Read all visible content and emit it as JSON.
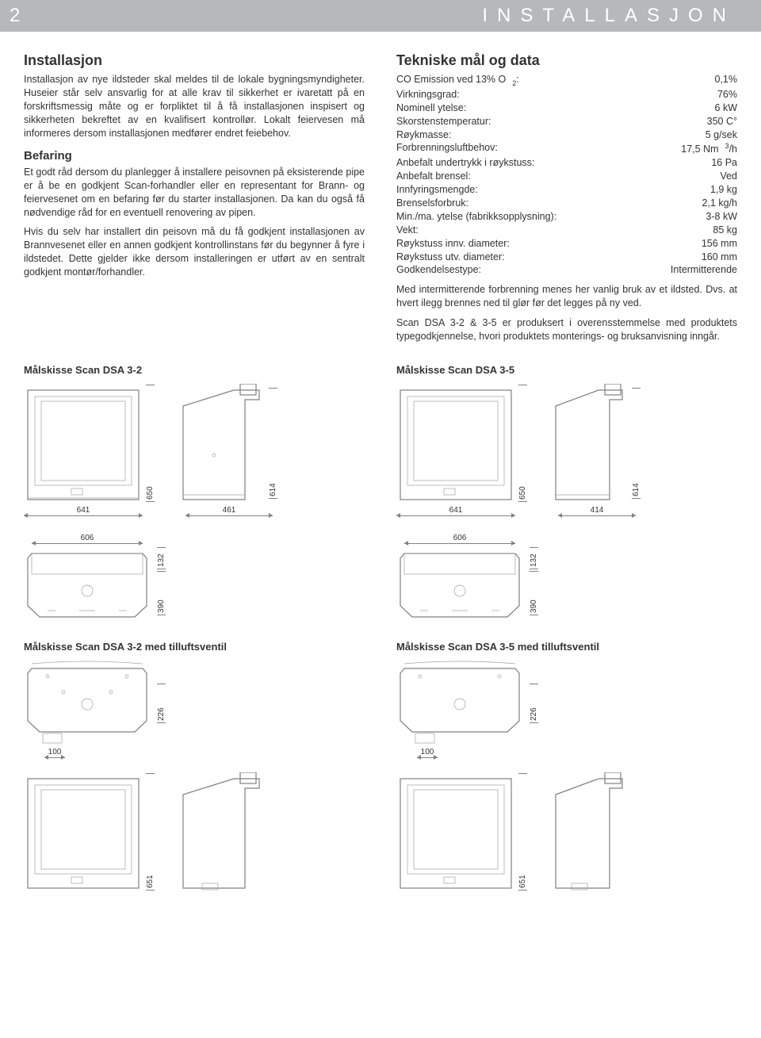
{
  "header": {
    "page_number": "2",
    "title": "INSTALLASJON"
  },
  "left": {
    "h_install": "Installasjon",
    "p1": "Installasjon av nye ildsteder skal meldes til de lokale bygningsmyndigheter. Huseier står selv ansvarlig for at alle krav til sikkerhet er ivaretatt på en forskriftsmessig måte og er forpliktet til å få installasjonen inspisert og sikkerheten bekreftet av en kvalifisert kontrollør. Lokalt feiervesen må informeres dersom installasjonen medfører endret feiebehov.",
    "h_befaring": "Befaring",
    "p2": "Et godt råd dersom du planlegger å installere peisovnen på eksisterende pipe er å be en godkjent Scan-forhandler eller en representant for Brann- og feiervesenet om en befaring før du starter installasjonen. Da kan du også få nødvendige råd for en eventuell renovering av pipen.",
    "p3": "Hvis du selv har installert din peisovn må du få godkjent installasjonen av Brannvesenet eller en annen godkjent kontrollinstans før du begynner å fyre i ildstedet. Dette gjelder ikke dersom installeringen er utført av en sentralt godkjent montør/forhandler."
  },
  "right": {
    "h_tech": "Tekniske mål og data",
    "specs": [
      {
        "l": "CO Emission ved 13% O",
        "sub": "2",
        "colon": ":",
        "v": "0,1%"
      },
      {
        "l": "Virkningsgrad:",
        "v": "76%"
      },
      {
        "l": "Nominell ytelse:",
        "v": "6 kW"
      },
      {
        "l": "Skorstenstemperatur:",
        "v": "350 C°"
      },
      {
        "l": "Røykmasse:",
        "v": "5 g/sek"
      },
      {
        "l": "Forbrenningsluftbehov:",
        "v": "17,5 Nm",
        "sup": "3",
        "tail": "/h"
      },
      {
        "l": "Anbefalt undertrykk i røykstuss:",
        "v": "16 Pa"
      },
      {
        "l": "Anbefalt brensel:",
        "v": "Ved"
      },
      {
        "l": "Innfyringsmengde:",
        "v": "1,9 kg"
      },
      {
        "l": "Brenselsforbruk:",
        "v": "2,1 kg/h"
      },
      {
        "l": "Min./ma. ytelse (fabrikksopplysning):",
        "v": "3-8 kW"
      },
      {
        "l": "Vekt:",
        "v": "85 kg"
      },
      {
        "l": "Røykstuss innv. diameter:",
        "v": "156 mm"
      },
      {
        "l": "Røykstuss utv. diameter:",
        "v": "160 mm"
      },
      {
        "l": "Godkendelsestype:",
        "v": "Intermitterende"
      }
    ],
    "p4": "Med intermitterende forbrenning menes her vanlig bruk av et ildsted. Dvs. at hvert ilegg brennes ned til glør før det legges på ny ved.",
    "p5": "Scan DSA 3-2 & 3-5 er produksert i overensstemmelse med produktets typegodkjennelse, hvori produktets monterings- og bruksanvisning inngår."
  },
  "diagrams": {
    "dsa32": {
      "title": "Målskisse Scan DSA 3-2",
      "front_h": "650",
      "side_h": "614",
      "front_w": "641",
      "side_w": "461",
      "plan_w": "606",
      "plan_d1": "132",
      "plan_d2": "390",
      "vent_title": "Målskisse Scan DSA 3-2 med tilluftsventil",
      "vent_h": "226",
      "vent_w": "100",
      "final_h": "651"
    },
    "dsa35": {
      "title": "Målskisse Scan DSA 3-5",
      "front_h": "650",
      "side_h": "614",
      "front_w": "641",
      "side_w": "414",
      "plan_w": "606",
      "plan_d1": "132",
      "plan_d2": "390",
      "vent_title": "Målskisse Scan DSA 3-5 med tilluftsventil",
      "vent_h": "226",
      "vent_w": "100",
      "final_h": "651"
    },
    "colors": {
      "stroke": "#808080",
      "thin": "#a0a0a0",
      "text": "#333333",
      "bg": "#ffffff"
    }
  }
}
